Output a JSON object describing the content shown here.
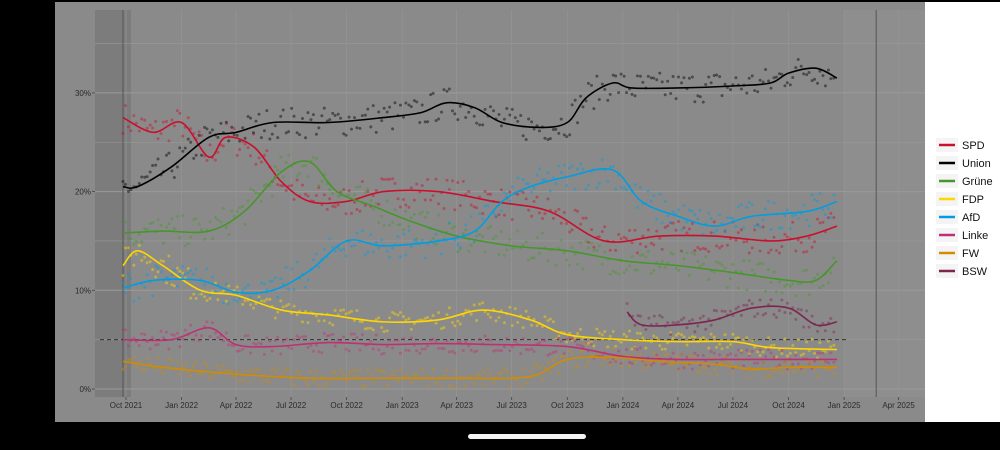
{
  "chart_data": {
    "type": "line",
    "title": "",
    "xlabel": "",
    "ylabel": "",
    "ylim": [
      0,
      37
    ],
    "xlim": [
      "2021-09-01",
      "2025-05-01"
    ],
    "x_ticks": [
      "Oct 2021",
      "Jan 2022",
      "Apr 2022",
      "Jul 2022",
      "Oct 2022",
      "Jan 2023",
      "Apr 2023",
      "Jul 2023",
      "Oct 2023",
      "Jan 2024",
      "Apr 2024",
      "Jul 2024",
      "Oct 2024",
      "Jan 2025",
      "Apr 2025"
    ],
    "y_ticks": [
      "0%",
      "10%",
      "20%",
      "30%"
    ],
    "threshold": 5,
    "grid": true,
    "legend_position": "right",
    "series": [
      {
        "name": "SPD",
        "color": "#c8102e",
        "points": [
          [
            "2021-09-26",
            27.5
          ],
          [
            "2021-11-15",
            26
          ],
          [
            "2022-01-01",
            27
          ],
          [
            "2022-02-15",
            23.5
          ],
          [
            "2022-03-15",
            25.5
          ],
          [
            "2022-05-01",
            24.5
          ],
          [
            "2022-06-15",
            21
          ],
          [
            "2022-08-01",
            19
          ],
          [
            "2022-10-01",
            19
          ],
          [
            "2022-12-01",
            20
          ],
          [
            "2023-03-01",
            20
          ],
          [
            "2023-06-01",
            19
          ],
          [
            "2023-09-01",
            18
          ],
          [
            "2023-12-01",
            15
          ],
          [
            "2024-03-01",
            15.5
          ],
          [
            "2024-06-01",
            15.5
          ],
          [
            "2024-09-01",
            15
          ],
          [
            "2024-11-01",
            15.5
          ],
          [
            "2024-12-20",
            16.5
          ]
        ]
      },
      {
        "name": "Union",
        "color": "#000000",
        "points": [
          [
            "2021-09-26",
            20.5
          ],
          [
            "2021-10-20",
            20.5
          ],
          [
            "2021-12-15",
            22.5
          ],
          [
            "2022-02-15",
            25.5
          ],
          [
            "2022-04-01",
            26
          ],
          [
            "2022-06-01",
            27
          ],
          [
            "2022-09-01",
            27
          ],
          [
            "2022-12-01",
            27.5
          ],
          [
            "2023-02-01",
            28
          ],
          [
            "2023-03-15",
            29
          ],
          [
            "2023-05-01",
            28.5
          ],
          [
            "2023-06-15",
            27
          ],
          [
            "2023-08-15",
            26.5
          ],
          [
            "2023-10-01",
            27
          ],
          [
            "2023-11-01",
            29.5
          ],
          [
            "2023-12-15",
            31
          ],
          [
            "2024-01-15",
            30.5
          ],
          [
            "2024-04-01",
            30.5
          ],
          [
            "2024-07-01",
            30.7
          ],
          [
            "2024-09-01",
            31
          ],
          [
            "2024-10-01",
            32
          ],
          [
            "2024-11-15",
            32.5
          ],
          [
            "2024-12-20",
            31.5
          ]
        ]
      },
      {
        "name": "Grüne",
        "color": "#46962b",
        "points": [
          [
            "2021-09-26",
            15.8
          ],
          [
            "2021-12-01",
            16
          ],
          [
            "2022-02-15",
            16
          ],
          [
            "2022-04-15",
            18
          ],
          [
            "2022-06-15",
            22
          ],
          [
            "2022-08-01",
            23
          ],
          [
            "2022-09-15",
            20
          ],
          [
            "2022-11-15",
            18.5
          ],
          [
            "2023-01-15",
            17
          ],
          [
            "2023-04-01",
            15.5
          ],
          [
            "2023-07-01",
            14.5
          ],
          [
            "2023-10-01",
            14
          ],
          [
            "2024-01-01",
            13
          ],
          [
            "2024-04-01",
            12.5
          ],
          [
            "2024-07-01",
            11.8
          ],
          [
            "2024-10-01",
            11
          ],
          [
            "2024-11-15",
            11
          ],
          [
            "2024-12-20",
            13
          ]
        ]
      },
      {
        "name": "FDP",
        "color": "#ffd700",
        "points": [
          [
            "2021-09-26",
            12.5
          ],
          [
            "2021-10-20",
            14
          ],
          [
            "2021-12-01",
            12.5
          ],
          [
            "2022-02-01",
            10
          ],
          [
            "2022-04-01",
            9.5
          ],
          [
            "2022-06-15",
            8
          ],
          [
            "2022-09-01",
            7.5
          ],
          [
            "2022-12-01",
            6.8
          ],
          [
            "2023-03-01",
            7
          ],
          [
            "2023-05-15",
            8
          ],
          [
            "2023-08-01",
            7
          ],
          [
            "2023-10-01",
            5.5
          ],
          [
            "2024-01-01",
            5
          ],
          [
            "2024-04-01",
            4.8
          ],
          [
            "2024-07-01",
            4.8
          ],
          [
            "2024-09-01",
            4.2
          ],
          [
            "2024-12-20",
            4
          ]
        ]
      },
      {
        "name": "AfD",
        "color": "#009ee0",
        "points": [
          [
            "2021-09-26",
            10.2
          ],
          [
            "2021-11-15",
            11
          ],
          [
            "2022-02-01",
            11
          ],
          [
            "2022-04-01",
            9.8
          ],
          [
            "2022-06-01",
            10
          ],
          [
            "2022-08-01",
            12
          ],
          [
            "2022-10-01",
            15
          ],
          [
            "2022-12-01",
            14.5
          ],
          [
            "2023-03-01",
            15
          ],
          [
            "2023-05-01",
            16
          ],
          [
            "2023-06-15",
            19
          ],
          [
            "2023-08-01",
            20.5
          ],
          [
            "2023-10-01",
            21.5
          ],
          [
            "2023-12-15",
            22.2
          ],
          [
            "2024-02-01",
            19
          ],
          [
            "2024-04-01",
            17.5
          ],
          [
            "2024-06-01",
            16.5
          ],
          [
            "2024-08-01",
            17.5
          ],
          [
            "2024-11-01",
            18
          ],
          [
            "2024-12-20",
            19
          ]
        ]
      },
      {
        "name": "Linke",
        "color": "#be3075",
        "points": [
          [
            "2021-09-26",
            5
          ],
          [
            "2021-12-15",
            5
          ],
          [
            "2022-02-15",
            6.2
          ],
          [
            "2022-04-01",
            4.5
          ],
          [
            "2022-06-01",
            4.3
          ],
          [
            "2022-09-01",
            4.7
          ],
          [
            "2022-12-01",
            4.5
          ],
          [
            "2023-03-01",
            4.6
          ],
          [
            "2023-06-01",
            4.5
          ],
          [
            "2023-10-01",
            4.3
          ],
          [
            "2024-01-01",
            3.3
          ],
          [
            "2024-04-01",
            3
          ],
          [
            "2024-07-01",
            3
          ],
          [
            "2024-10-01",
            3
          ],
          [
            "2024-12-20",
            3
          ]
        ]
      },
      {
        "name": "FW",
        "color": "#d18c00",
        "points": [
          [
            "2021-09-26",
            2.8
          ],
          [
            "2021-12-01",
            2.2
          ],
          [
            "2022-04-01",
            1.5
          ],
          [
            "2022-08-01",
            1.1
          ],
          [
            "2022-12-01",
            1.1
          ],
          [
            "2023-04-01",
            1.1
          ],
          [
            "2023-07-01",
            1.1
          ],
          [
            "2023-08-15",
            1.5
          ],
          [
            "2023-10-01",
            3
          ],
          [
            "2023-12-15",
            3.2
          ],
          [
            "2024-03-01",
            2.8
          ],
          [
            "2024-06-01",
            2.5
          ],
          [
            "2024-08-01",
            2
          ],
          [
            "2024-10-01",
            2.2
          ],
          [
            "2024-12-20",
            2.2
          ]
        ]
      },
      {
        "name": "BSW",
        "color": "#7d254f",
        "points": [
          [
            "2024-01-08",
            7.8
          ],
          [
            "2024-02-01",
            6.5
          ],
          [
            "2024-04-01",
            6.5
          ],
          [
            "2024-06-01",
            7
          ],
          [
            "2024-08-01",
            8.2
          ],
          [
            "2024-10-01",
            8.2
          ],
          [
            "2024-11-15",
            6.5
          ],
          [
            "2024-12-20",
            6.8
          ]
        ]
      }
    ]
  }
}
